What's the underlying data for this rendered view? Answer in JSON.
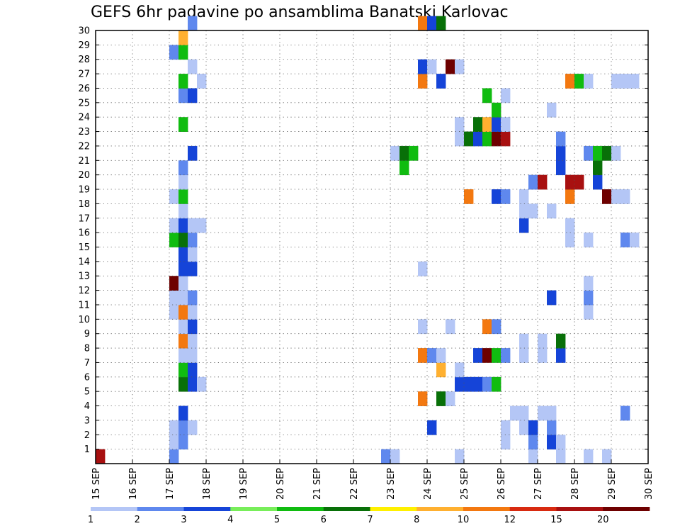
{
  "chart_data": {
    "type": "heatmap",
    "title": "GEFS 6hr padavine po ansamblima Banatski Karlovac",
    "xlabel": "",
    "ylabel": "",
    "x_axis": {
      "start": "15 SEP",
      "end": "30 SEP",
      "step_hours": 6,
      "tick_labels": [
        "15 SEP",
        "16 SEP",
        "17 SEP",
        "18 SEP",
        "19 SEP",
        "20 SEP",
        "21 SEP",
        "22 SEP",
        "23 SEP",
        "24 SEP",
        "25 SEP",
        "26 SEP",
        "27 SEP",
        "28 SEP",
        "29 SEP",
        "30 SEP"
      ]
    },
    "y_axis": {
      "range": [
        0,
        30
      ],
      "tick_labels": [
        "1",
        "2",
        "3",
        "4",
        "5",
        "6",
        "7",
        "8",
        "9",
        "10",
        "11",
        "12",
        "13",
        "14",
        "15",
        "16",
        "17",
        "18",
        "19",
        "20",
        "21",
        "22",
        "23",
        "24",
        "25",
        "26",
        "27",
        "28",
        "29",
        "30"
      ]
    },
    "grid": true,
    "colorbar": {
      "placement": "bottom",
      "labels": [
        "1",
        "2",
        "3",
        "4",
        "5",
        "6",
        "7",
        "8",
        "10",
        "12",
        "15",
        "20"
      ],
      "colors": [
        "#b4c6f6",
        "#5f88ee",
        "#1544d8",
        "#78ee5a",
        "#10bc10",
        "#087008",
        "#fff000",
        "#ffb030",
        "#f37810",
        "#d82a10",
        "#a81010",
        "#6e0000"
      ]
    },
    "cells_columns": [
      "day",
      "slot",
      "member",
      "value"
    ],
    "cells": [
      [
        0,
        0,
        0,
        15
      ],
      [
        2,
        0,
        0,
        2
      ],
      [
        2,
        0,
        1,
        1
      ],
      [
        2,
        0,
        2,
        1
      ],
      [
        2,
        0,
        10,
        1
      ],
      [
        2,
        0,
        11,
        1
      ],
      [
        2,
        0,
        12,
        20
      ],
      [
        2,
        0,
        15,
        5
      ],
      [
        2,
        0,
        16,
        1
      ],
      [
        2,
        0,
        18,
        1
      ],
      [
        2,
        0,
        28,
        2
      ],
      [
        2,
        1,
        1,
        2
      ],
      [
        2,
        1,
        2,
        2
      ],
      [
        2,
        1,
        3,
        3
      ],
      [
        2,
        1,
        5,
        6
      ],
      [
        2,
        1,
        6,
        5
      ],
      [
        2,
        1,
        7,
        1
      ],
      [
        2,
        1,
        8,
        10
      ],
      [
        2,
        1,
        9,
        1
      ],
      [
        2,
        1,
        10,
        10
      ],
      [
        2,
        1,
        11,
        1
      ],
      [
        2,
        1,
        12,
        1
      ],
      [
        2,
        1,
        13,
        3
      ],
      [
        2,
        1,
        14,
        3
      ],
      [
        2,
        1,
        15,
        6
      ],
      [
        2,
        1,
        16,
        3
      ],
      [
        2,
        1,
        17,
        1
      ],
      [
        2,
        1,
        18,
        5
      ],
      [
        2,
        1,
        19,
        1
      ],
      [
        2,
        1,
        20,
        2
      ],
      [
        2,
        1,
        23,
        5
      ],
      [
        2,
        1,
        25,
        2
      ],
      [
        2,
        1,
        26,
        5
      ],
      [
        2,
        1,
        28,
        5
      ],
      [
        2,
        1,
        29,
        8
      ],
      [
        2,
        2,
        2,
        1
      ],
      [
        2,
        2,
        5,
        3
      ],
      [
        2,
        2,
        6,
        3
      ],
      [
        2,
        2,
        7,
        1
      ],
      [
        2,
        2,
        8,
        1
      ],
      [
        2,
        2,
        9,
        3
      ],
      [
        2,
        2,
        10,
        1
      ],
      [
        2,
        2,
        11,
        2
      ],
      [
        2,
        2,
        13,
        3
      ],
      [
        2,
        2,
        14,
        1
      ],
      [
        2,
        2,
        15,
        2
      ],
      [
        2,
        2,
        16,
        1
      ],
      [
        2,
        2,
        21,
        3
      ],
      [
        2,
        2,
        25,
        3
      ],
      [
        2,
        2,
        27,
        1
      ],
      [
        2,
        2,
        30,
        2
      ],
      [
        2,
        3,
        5,
        1
      ],
      [
        2,
        3,
        16,
        1
      ],
      [
        2,
        3,
        26,
        1
      ],
      [
        7,
        3,
        0,
        2
      ],
      [
        8,
        0,
        0,
        1
      ],
      [
        8,
        0,
        21,
        1
      ],
      [
        8,
        1,
        20,
        5
      ],
      [
        8,
        1,
        21,
        6
      ],
      [
        8,
        2,
        21,
        5
      ],
      [
        8,
        3,
        4,
        10
      ],
      [
        8,
        3,
        7,
        10
      ],
      [
        8,
        3,
        9,
        1
      ],
      [
        8,
        3,
        13,
        1
      ],
      [
        8,
        3,
        26,
        10
      ],
      [
        8,
        3,
        27,
        3
      ],
      [
        8,
        3,
        30,
        10
      ],
      [
        9,
        0,
        2,
        3
      ],
      [
        9,
        0,
        7,
        2
      ],
      [
        9,
        0,
        27,
        1
      ],
      [
        9,
        0,
        30,
        3
      ],
      [
        9,
        1,
        4,
        6
      ],
      [
        9,
        1,
        6,
        8
      ],
      [
        9,
        1,
        7,
        1
      ],
      [
        9,
        1,
        26,
        3
      ],
      [
        9,
        1,
        30,
        6
      ],
      [
        9,
        2,
        4,
        1
      ],
      [
        9,
        2,
        9,
        1
      ],
      [
        9,
        2,
        27,
        20
      ],
      [
        9,
        3,
        0,
        1
      ],
      [
        9,
        3,
        5,
        3
      ],
      [
        9,
        3,
        6,
        1
      ],
      [
        9,
        3,
        22,
        1
      ],
      [
        9,
        3,
        23,
        1
      ],
      [
        9,
        3,
        27,
        1
      ],
      [
        10,
        0,
        5,
        3
      ],
      [
        10,
        0,
        18,
        10
      ],
      [
        10,
        0,
        22,
        6
      ],
      [
        10,
        1,
        5,
        3
      ],
      [
        10,
        1,
        7,
        3
      ],
      [
        10,
        1,
        22,
        3
      ],
      [
        10,
        1,
        23,
        6
      ],
      [
        10,
        2,
        5,
        2
      ],
      [
        10,
        2,
        7,
        20
      ],
      [
        10,
        2,
        9,
        10
      ],
      [
        10,
        2,
        22,
        5
      ],
      [
        10,
        2,
        23,
        8
      ],
      [
        10,
        2,
        25,
        5
      ],
      [
        10,
        3,
        5,
        5
      ],
      [
        10,
        3,
        7,
        5
      ],
      [
        10,
        3,
        9,
        2
      ],
      [
        10,
        3,
        18,
        3
      ],
      [
        10,
        3,
        22,
        20
      ],
      [
        10,
        3,
        23,
        3
      ],
      [
        10,
        3,
        24,
        5
      ],
      [
        11,
        0,
        1,
        1
      ],
      [
        11,
        0,
        2,
        1
      ],
      [
        11,
        0,
        7,
        2
      ],
      [
        11,
        0,
        18,
        2
      ],
      [
        11,
        0,
        22,
        15
      ],
      [
        11,
        0,
        23,
        1
      ],
      [
        11,
        0,
        25,
        1
      ],
      [
        11,
        1,
        3,
        1
      ],
      [
        11,
        2,
        2,
        1
      ],
      [
        11,
        2,
        3,
        1
      ],
      [
        11,
        2,
        7,
        1
      ],
      [
        11,
        2,
        8,
        1
      ],
      [
        11,
        2,
        16,
        3
      ],
      [
        11,
        2,
        17,
        1
      ],
      [
        11,
        2,
        18,
        1
      ],
      [
        11,
        3,
        0,
        1
      ],
      [
        11,
        3,
        1,
        2
      ],
      [
        11,
        3,
        2,
        3
      ],
      [
        11,
        3,
        17,
        1
      ],
      [
        11,
        3,
        19,
        2
      ],
      [
        12,
        0,
        3,
        1
      ],
      [
        12,
        0,
        7,
        1
      ],
      [
        12,
        0,
        8,
        1
      ],
      [
        12,
        0,
        19,
        15
      ],
      [
        12,
        1,
        1,
        3
      ],
      [
        12,
        1,
        2,
        2
      ],
      [
        12,
        1,
        3,
        1
      ],
      [
        12,
        1,
        11,
        3
      ],
      [
        12,
        1,
        17,
        1
      ],
      [
        12,
        1,
        24,
        1
      ],
      [
        12,
        2,
        0,
        1
      ],
      [
        12,
        2,
        1,
        1
      ],
      [
        12,
        2,
        7,
        3
      ],
      [
        12,
        2,
        8,
        6
      ],
      [
        12,
        2,
        20,
        3
      ],
      [
        12,
        2,
        21,
        3
      ],
      [
        12,
        2,
        22,
        2
      ],
      [
        12,
        3,
        15,
        1
      ],
      [
        12,
        3,
        16,
        1
      ],
      [
        12,
        3,
        18,
        10
      ],
      [
        12,
        3,
        19,
        15
      ],
      [
        12,
        3,
        26,
        10
      ],
      [
        13,
        0,
        19,
        15
      ],
      [
        13,
        0,
        26,
        5
      ],
      [
        13,
        1,
        0,
        1
      ],
      [
        13,
        1,
        10,
        1
      ],
      [
        13,
        1,
        11,
        2
      ],
      [
        13,
        1,
        12,
        1
      ],
      [
        13,
        1,
        15,
        1
      ],
      [
        13,
        1,
        21,
        2
      ],
      [
        13,
        1,
        26,
        1
      ],
      [
        13,
        2,
        19,
        3
      ],
      [
        13,
        2,
        20,
        6
      ],
      [
        13,
        2,
        21,
        5
      ],
      [
        13,
        3,
        0,
        1
      ],
      [
        13,
        3,
        18,
        20
      ],
      [
        13,
        3,
        21,
        6
      ],
      [
        14,
        0,
        18,
        1
      ],
      [
        14,
        0,
        21,
        1
      ],
      [
        14,
        0,
        26,
        1
      ],
      [
        14,
        1,
        3,
        2
      ],
      [
        14,
        1,
        15,
        2
      ],
      [
        14,
        1,
        18,
        1
      ],
      [
        14,
        1,
        26,
        1
      ],
      [
        14,
        2,
        15,
        1
      ],
      [
        14,
        2,
        26,
        1
      ]
    ]
  }
}
